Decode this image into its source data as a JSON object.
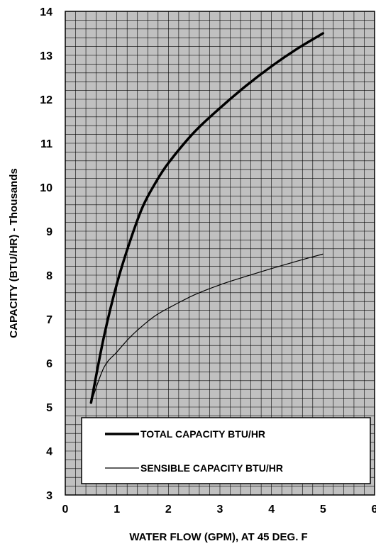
{
  "chart_data": {
    "type": "line",
    "title": "",
    "xlabel": "WATER FLOW (GPM), AT 45 DEG. F",
    "ylabel": "CAPACITY (BTU/HR) -  Thousands",
    "xlim": [
      0,
      6
    ],
    "ylim": [
      3,
      14
    ],
    "x_ticks": [
      "0",
      "1",
      "2",
      "3",
      "4",
      "5",
      "6"
    ],
    "y_ticks": [
      "3",
      "4",
      "5",
      "6",
      "7",
      "8",
      "9",
      "10",
      "11",
      "12",
      "13",
      "14"
    ],
    "grid": true,
    "plot_background": "#c0c0c0",
    "legend_position": "bottom",
    "series": [
      {
        "name": "TOTAL CAPACITY BTU/HR",
        "line_weight": "heavy",
        "color": "#000000",
        "x": [
          0.5,
          0.75,
          1.0,
          1.25,
          1.5,
          1.75,
          2.0,
          2.5,
          3.0,
          3.5,
          4.0,
          4.5,
          5.0
        ],
        "y": [
          5.1,
          6.6,
          7.8,
          8.75,
          9.55,
          10.1,
          10.55,
          11.25,
          11.8,
          12.3,
          12.75,
          13.15,
          13.5
        ]
      },
      {
        "name": "SENSIBLE CAPACITY BTU/HR",
        "line_weight": "thin",
        "color": "#000000",
        "x": [
          0.5,
          0.75,
          1.0,
          1.25,
          1.5,
          1.75,
          2.0,
          2.5,
          3.0,
          3.5,
          4.0,
          4.5,
          5.0
        ],
        "y": [
          5.1,
          5.9,
          6.25,
          6.58,
          6.85,
          7.08,
          7.25,
          7.55,
          7.78,
          7.97,
          8.15,
          8.32,
          8.48
        ]
      }
    ]
  }
}
